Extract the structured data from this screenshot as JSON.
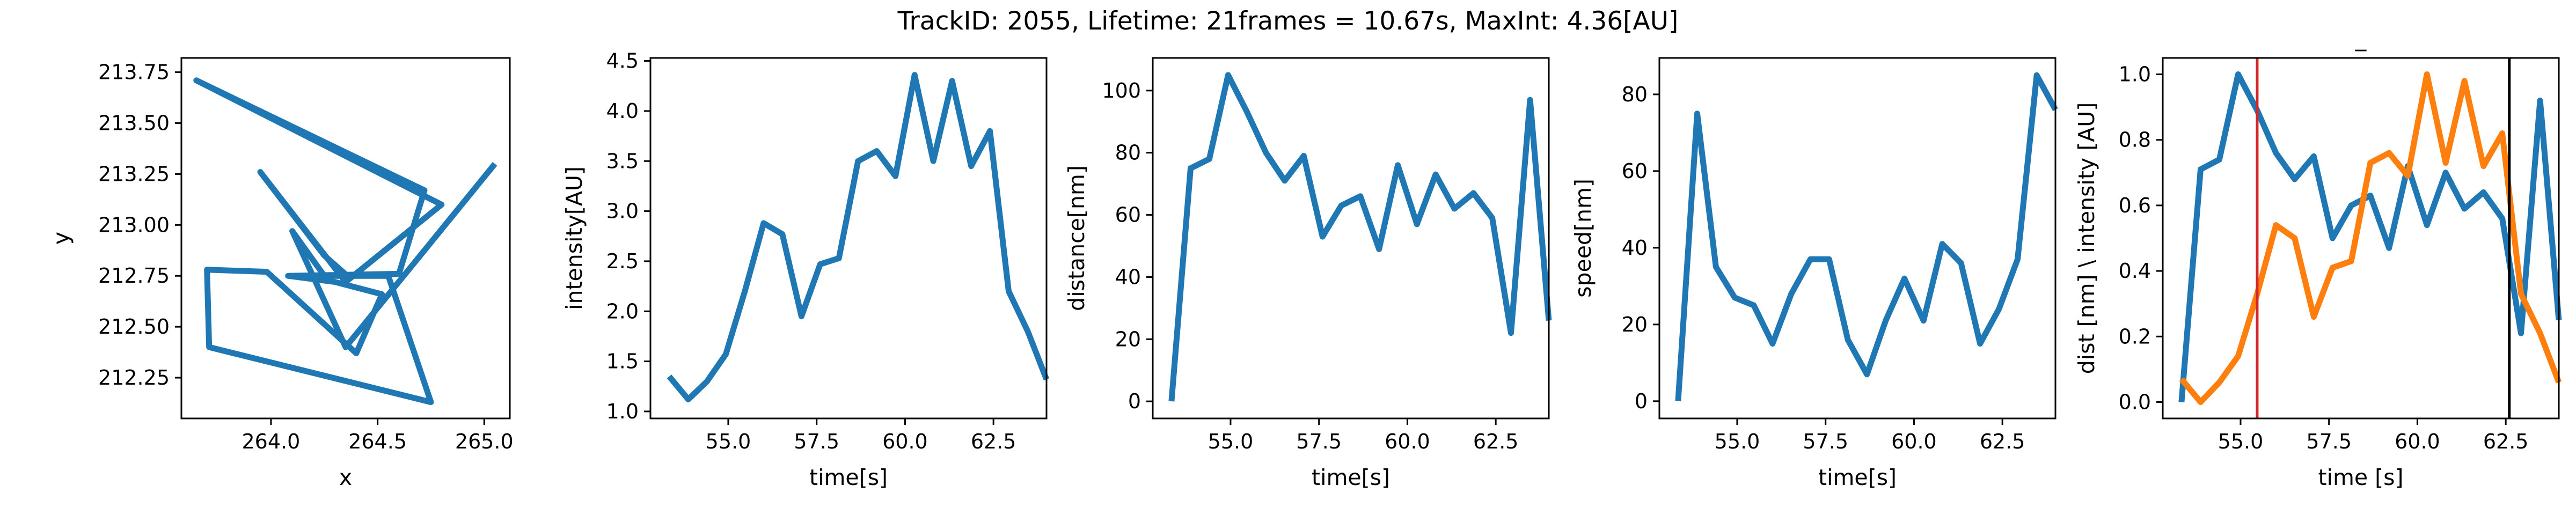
{
  "figure": {
    "suptitle": "TrackID: 2055, Lifetime: 21frames = 10.67s, MaxInt: 4.36[AU]"
  },
  "colors": {
    "blue": "#1f77b4",
    "orange": "#ff7f0e",
    "red": "#d62728",
    "black": "#000000"
  },
  "chart_data": [
    {
      "type": "line",
      "title": "",
      "xlabel": "x",
      "ylabel": "y",
      "xlim": [
        263.58,
        265.12
      ],
      "ylim": [
        212.05,
        213.82
      ],
      "xticks": [
        264.0,
        264.5,
        265.0
      ],
      "xtick_labels": [
        "264.0",
        "264.5",
        "265.0"
      ],
      "yticks": [
        212.25,
        212.5,
        212.75,
        213.0,
        213.25,
        213.5,
        213.75
      ],
      "ytick_labels": [
        "212.25",
        "212.50",
        "212.75",
        "213.00",
        "213.25",
        "213.50",
        "213.75"
      ],
      "grid": false,
      "series": [
        {
          "color": "#1f77b4",
          "x": [
            265.05,
            264.35,
            264.1,
            264.25,
            264.55,
            264.75,
            263.71,
            263.7,
            263.98,
            264.4,
            264.52,
            264.3,
            264.08,
            264.6,
            264.72,
            263.65,
            264.8,
            264.35,
            263.95,
            264.25,
            264.38
          ],
          "y": [
            213.3,
            212.4,
            212.97,
            212.75,
            212.75,
            212.13,
            212.4,
            212.78,
            212.77,
            212.37,
            212.66,
            212.72,
            212.75,
            212.76,
            213.17,
            213.71,
            213.1,
            212.72,
            213.26,
            212.85,
            212.73
          ]
        }
      ]
    },
    {
      "type": "line",
      "title": "",
      "xlabel": "time[s]",
      "ylabel": "intensity[AU]",
      "xlim": [
        52.8,
        64.0
      ],
      "ylim": [
        0.93,
        4.53
      ],
      "xticks": [
        55.0,
        57.5,
        60.0,
        62.5
      ],
      "xtick_labels": [
        "55.0",
        "57.5",
        "60.0",
        "62.5"
      ],
      "yticks": [
        1.0,
        1.5,
        2.0,
        2.5,
        3.0,
        3.5,
        4.0,
        4.5
      ],
      "ytick_labels": [
        "1.0",
        "1.5",
        "2.0",
        "2.5",
        "3.0",
        "3.5",
        "4.0",
        "4.5"
      ],
      "grid": false,
      "series": [
        {
          "color": "#1f77b4",
          "x": [
            53.33,
            53.87,
            54.4,
            54.93,
            55.47,
            56.0,
            56.53,
            57.07,
            57.6,
            58.13,
            58.67,
            59.2,
            59.73,
            60.27,
            60.8,
            61.33,
            61.87,
            62.4,
            62.93,
            63.47,
            64.0
          ],
          "y": [
            1.35,
            1.12,
            1.3,
            1.57,
            2.2,
            2.88,
            2.77,
            1.95,
            2.47,
            2.53,
            3.5,
            3.6,
            3.35,
            4.36,
            3.5,
            4.3,
            3.45,
            3.8,
            2.2,
            1.8,
            1.32
          ]
        }
      ]
    },
    {
      "type": "line",
      "title": "",
      "xlabel": "time[s]",
      "ylabel": "distance[nm]",
      "xlim": [
        52.8,
        64.0
      ],
      "ylim": [
        -5.5,
        110.5
      ],
      "xticks": [
        55.0,
        57.5,
        60.0,
        62.5
      ],
      "xtick_labels": [
        "55.0",
        "57.5",
        "60.0",
        "62.5"
      ],
      "yticks": [
        0,
        20,
        40,
        60,
        80,
        100
      ],
      "ytick_labels": [
        "0",
        "20",
        "40",
        "60",
        "80",
        "100"
      ],
      "grid": false,
      "series": [
        {
          "color": "#1f77b4",
          "x": [
            53.33,
            53.87,
            54.4,
            54.93,
            55.47,
            56.0,
            56.53,
            57.07,
            57.6,
            58.13,
            58.67,
            59.2,
            59.73,
            60.27,
            60.8,
            61.33,
            61.87,
            62.4,
            62.93,
            63.47,
            64.0
          ],
          "y": [
            0,
            75,
            78,
            105,
            93,
            80,
            71,
            79,
            53,
            63,
            66,
            49,
            76,
            57,
            73,
            62,
            67,
            59,
            22,
            97,
            26
          ]
        }
      ]
    },
    {
      "type": "line",
      "title": "",
      "xlabel": "time[s]",
      "ylabel": "speed[nm]",
      "xlim": [
        52.8,
        64.0
      ],
      "ylim": [
        -4.5,
        89.5
      ],
      "xticks": [
        55.0,
        57.5,
        60.0,
        62.5
      ],
      "xtick_labels": [
        "55.0",
        "57.5",
        "60.0",
        "62.5"
      ],
      "yticks": [
        0,
        20,
        40,
        60,
        80
      ],
      "ytick_labels": [
        "0",
        "20",
        "40",
        "60",
        "80"
      ],
      "grid": false,
      "series": [
        {
          "color": "#1f77b4",
          "x": [
            53.33,
            53.87,
            54.4,
            54.93,
            55.47,
            56.0,
            56.53,
            57.07,
            57.6,
            58.13,
            58.67,
            59.2,
            59.73,
            60.27,
            60.8,
            61.33,
            61.87,
            62.4,
            62.93,
            63.47,
            64.0
          ],
          "y": [
            0,
            75,
            35,
            27,
            25,
            15,
            28,
            37,
            37,
            16,
            7,
            21,
            32,
            21,
            41,
            36,
            15,
            24,
            37,
            85,
            76
          ]
        }
      ]
    },
    {
      "type": "line",
      "title": "_",
      "xlabel": "time [s]",
      "ylabel": "dist [nm] \\ intensity [AU]",
      "xlim": [
        52.8,
        64.0
      ],
      "ylim": [
        -0.05,
        1.05
      ],
      "xticks": [
        55.0,
        57.5,
        60.0,
        62.5
      ],
      "xtick_labels": [
        "55.0",
        "57.5",
        "60.0",
        "62.5"
      ],
      "yticks": [
        0.0,
        0.2,
        0.4,
        0.6,
        0.8,
        1.0
      ],
      "ytick_labels": [
        "0.0",
        "0.2",
        "0.4",
        "0.6",
        "0.8",
        "1.0"
      ],
      "grid": false,
      "series": [
        {
          "color": "#1f77b4",
          "x": [
            53.33,
            53.87,
            54.4,
            54.93,
            55.47,
            56.0,
            56.53,
            57.07,
            57.6,
            58.13,
            58.67,
            59.2,
            59.73,
            60.27,
            60.8,
            61.33,
            61.87,
            62.4,
            62.93,
            63.47,
            64.0
          ],
          "y": [
            0.0,
            0.71,
            0.74,
            1.0,
            0.89,
            0.76,
            0.68,
            0.75,
            0.5,
            0.6,
            0.63,
            0.47,
            0.72,
            0.54,
            0.7,
            0.59,
            0.64,
            0.56,
            0.21,
            0.92,
            0.25
          ]
        },
        {
          "color": "#ff7f0e",
          "x": [
            53.33,
            53.87,
            54.4,
            54.93,
            55.47,
            56.0,
            56.53,
            57.07,
            57.6,
            58.13,
            58.67,
            59.2,
            59.73,
            60.27,
            60.8,
            61.33,
            61.87,
            62.4,
            62.93,
            63.47,
            64.0
          ],
          "y": [
            0.07,
            0.0,
            0.06,
            0.14,
            0.33,
            0.54,
            0.5,
            0.26,
            0.41,
            0.43,
            0.73,
            0.76,
            0.69,
            1.0,
            0.73,
            0.98,
            0.72,
            0.82,
            0.33,
            0.21,
            0.06
          ]
        }
      ],
      "vlines": [
        {
          "x": 55.47,
          "color": "#d62728"
        },
        {
          "x": 62.6,
          "color": "#000000"
        }
      ]
    }
  ]
}
